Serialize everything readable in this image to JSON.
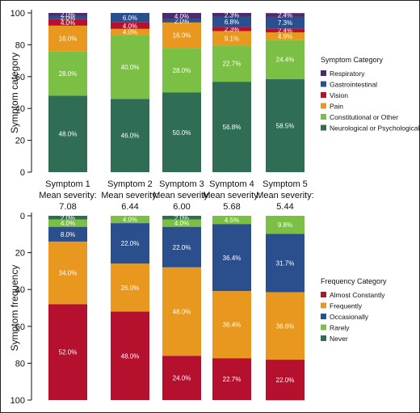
{
  "chart_data": [
    {
      "type": "bar",
      "stacked": true,
      "ylabel": "Symptom category",
      "ylim": [
        0,
        100
      ],
      "yticks": [
        0,
        20,
        40,
        60,
        80,
        100
      ],
      "categories": [
        "Symptom 1",
        "Symptom 2",
        "Symptom 3",
        "Symptom 4",
        "Symptom 5"
      ],
      "mean_severity_label": "Mean severity:",
      "mean_severity": [
        "7.08",
        "6.44",
        "6.00",
        "5.68",
        "5.44"
      ],
      "legend_title": "Symptom Category",
      "legend_position": "right",
      "series": [
        {
          "name": "Neurological or Psychological",
          "color": "#2f6e55",
          "values": [
            48.0,
            46.0,
            50.0,
            56.8,
            58.5
          ],
          "labels": [
            "48.0%",
            "46.0%",
            "50.0%",
            "56.8%",
            "58.5%"
          ]
        },
        {
          "name": "Constitutional or Other",
          "color": "#7bbf45",
          "values": [
            28.0,
            40.0,
            28.0,
            22.7,
            24.4
          ],
          "labels": [
            "28.0%",
            "40.0%",
            "28.0%",
            "22.7%",
            "24.4%"
          ]
        },
        {
          "name": "Pain",
          "color": "#e8981f",
          "values": [
            16.0,
            4.0,
            16.0,
            9.1,
            4.9
          ],
          "labels": [
            "16.0%",
            "4.0%",
            "16.0%",
            "9.1%",
            "4.9%"
          ]
        },
        {
          "name": "Vision",
          "color": "#b5102e",
          "values": [
            4.0,
            4.0,
            0,
            2.3,
            2.4
          ],
          "labels": [
            "4.0%",
            "4.0%",
            "",
            "2.3%",
            "2.4%"
          ]
        },
        {
          "name": "Gastrointestinal",
          "color": "#2a4f8c",
          "values": [
            2.0,
            6.0,
            2.0,
            6.8,
            7.3
          ],
          "labels": [
            "2.0%",
            "6.0%",
            "2.0%",
            "6.8%",
            "7.3%"
          ]
        },
        {
          "name": "Respiratory",
          "color": "#4b2a6e",
          "values": [
            2.0,
            0,
            4.0,
            2.3,
            2.4
          ],
          "labels": [
            "2.0%",
            "",
            "4.0%",
            "2.3%",
            "2.4%"
          ]
        }
      ]
    },
    {
      "type": "bar",
      "stacked": true,
      "y_inverted": true,
      "ylabel": "Symptom frequency",
      "ylim": [
        0,
        100
      ],
      "yticks": [
        0,
        20,
        40,
        60,
        80,
        100
      ],
      "categories": [
        "Symptom 1",
        "Symptom 2",
        "Symptom 3",
        "Symptom 4",
        "Symptom 5"
      ],
      "legend_title": "Frequency Category",
      "legend_position": "right",
      "series": [
        {
          "name": "Never",
          "color": "#2f6e55",
          "values": [
            2.0,
            0,
            2.0,
            0,
            0
          ],
          "labels": [
            "2.0%",
            "",
            "2.0%",
            "",
            ""
          ]
        },
        {
          "name": "Rarely",
          "color": "#7bbf45",
          "values": [
            4.0,
            4.0,
            4.0,
            4.5,
            9.8
          ],
          "labels": [
            "4.0%",
            "4.0%",
            "4.0%",
            "4.5%",
            "9.8%"
          ]
        },
        {
          "name": "Occasionally",
          "color": "#2a4f8c",
          "values": [
            8.0,
            22.0,
            22.0,
            36.4,
            31.7
          ],
          "labels": [
            "8.0%",
            "22.0%",
            "22.0%",
            "36.4%",
            "31.7%"
          ]
        },
        {
          "name": "Frequently",
          "color": "#e8981f",
          "values": [
            34.0,
            26.0,
            48.0,
            36.4,
            36.6
          ],
          "labels": [
            "34.0%",
            "26.0%",
            "48.0%",
            "36.4%",
            "36.6%"
          ]
        },
        {
          "name": "Almost Constantly",
          "color": "#b5102e",
          "values": [
            52.0,
            48.0,
            24.0,
            22.7,
            22.0
          ],
          "labels": [
            "52.0%",
            "48.0%",
            "24.0%",
            "22.7%",
            "22.0%"
          ]
        }
      ]
    }
  ]
}
